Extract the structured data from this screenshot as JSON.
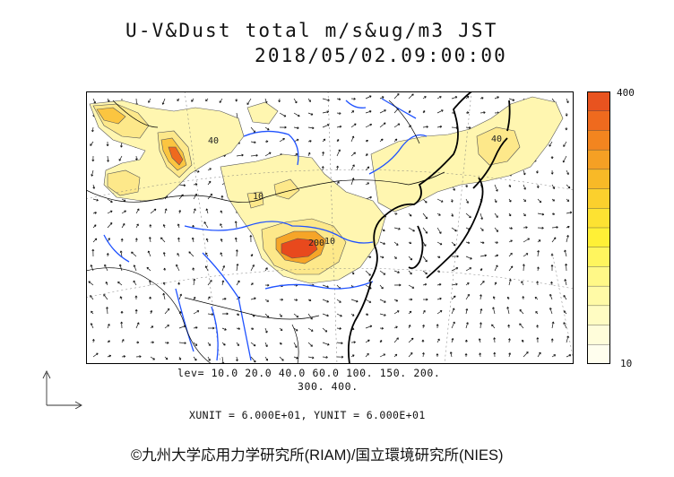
{
  "title": {
    "line1": "U-V&Dust total m/s&ug/m3 JST",
    "line2": "2018/05/02.09:00:00"
  },
  "colorbar": {
    "max_label": "400",
    "min_label": "10",
    "colors": [
      "#e8531f",
      "#ef6a1e",
      "#f3851f",
      "#f5a024",
      "#f8b927",
      "#fbd02d",
      "#fde232",
      "#fff036",
      "#fff55e",
      "#fff887",
      "#fffaa6",
      "#fffcc2",
      "#fffdda",
      "#fffeee"
    ]
  },
  "levels": {
    "line1": "lev= 10.0 20.0 40.0 60.0 100. 150. 200.",
    "line2": "300. 400."
  },
  "units_text": "XUNIT = 6.000E+01, YUNIT = 6.000E+01",
  "credit": "©九州大学応用力学研究所(RIAM)/国立環境研究所(NIES)",
  "map_labels": [
    "40",
    "200",
    "10",
    "40",
    "10"
  ],
  "colors": {
    "coast": "#000000",
    "river": "#1f52ff",
    "dust_low": "#fff6b0",
    "dust_mid": "#fbd94a",
    "dust_high": "#f08a20",
    "dust_peak": "#e8491d"
  }
}
